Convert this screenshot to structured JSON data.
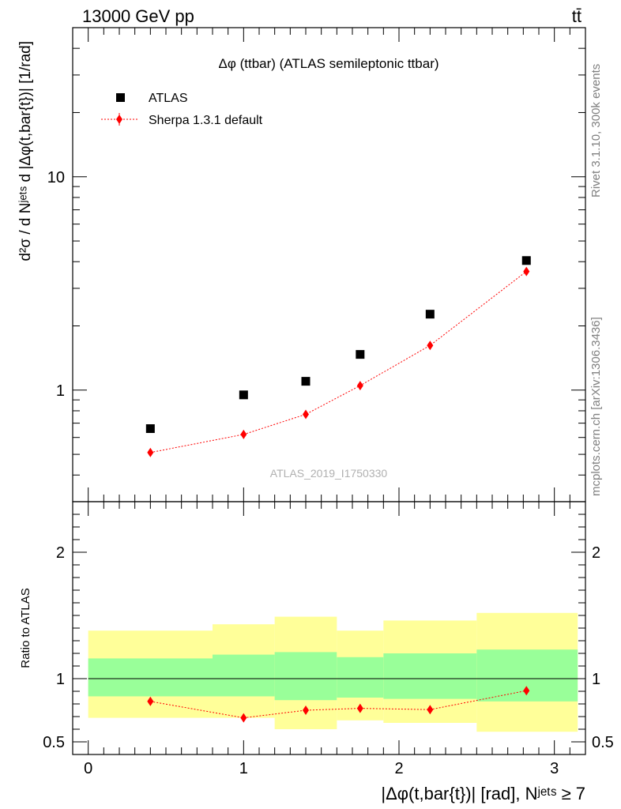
{
  "header": {
    "left": "13000 GeV pp",
    "right": "tt̄"
  },
  "side_labels": {
    "rivet": "Rivet 3.1.10,  300k events",
    "mcplots": "mcplots.cern.ch [arXiv:1306.3436]"
  },
  "chart_data": [
    {
      "type": "scatter",
      "title": "Δφ (ttbar) (ATLAS semileptonic ttbar)",
      "watermark": "ATLAS_2019_I1750330",
      "ylabel": "d²σ / d Nʲᵉᵗˢ d |Δφ(t,bar{t})| [1/rad]",
      "yscale": "log",
      "xlim": [
        -0.1,
        3.2
      ],
      "ylim": [
        0.3,
        50
      ],
      "ytick_labels": [
        "1",
        "10"
      ],
      "legend": {
        "placement": "top-left"
      },
      "series": [
        {
          "name": "ATLAS",
          "marker": "square",
          "color": "#000000",
          "x": [
            0.4,
            1.0,
            1.4,
            1.75,
            2.2,
            2.82
          ],
          "y": [
            0.66,
            0.95,
            1.1,
            1.47,
            2.27,
            4.05
          ]
        },
        {
          "name": "Sherpa 1.3.1 default",
          "marker": "diamond",
          "line": "dotted",
          "color": "#ff0000",
          "x": [
            0.4,
            1.0,
            1.4,
            1.75,
            2.2,
            2.82
          ],
          "y": [
            0.51,
            0.62,
            0.77,
            1.05,
            1.62,
            3.6
          ],
          "yerr": [
            0.015,
            0.025,
            0.03,
            0.04,
            0.05,
            0.08
          ]
        }
      ]
    },
    {
      "type": "scatter",
      "ylabel": "Ratio to ATLAS",
      "xlabel": "|Δφ(t,bar{t})| [rad], Nʲᵉᵗˢ ≥ 7",
      "ylim": [
        0.4,
        2.4
      ],
      "xlim": [
        -0.1,
        3.2
      ],
      "ytick_labels": [
        "0.5",
        "1",
        "2"
      ],
      "xtick_labels": [
        "0",
        "1",
        "2",
        "3"
      ],
      "reference_line": 1,
      "bands": {
        "edges": [
          0.0,
          0.8,
          1.2,
          1.6,
          1.9,
          2.5,
          3.15
        ],
        "outer_lo": [
          0.69,
          0.69,
          0.6,
          0.67,
          0.65,
          0.58
        ],
        "outer_hi": [
          1.38,
          1.43,
          1.49,
          1.38,
          1.46,
          1.52
        ],
        "inner_lo": [
          0.86,
          0.86,
          0.83,
          0.85,
          0.84,
          0.82
        ],
        "inner_hi": [
          1.16,
          1.19,
          1.21,
          1.17,
          1.2,
          1.23
        ],
        "outer_color": "#ffff99",
        "inner_color": "#99ff99"
      },
      "series": [
        {
          "name": "Sherpa 1.3.1 default",
          "marker": "diamond",
          "line": "dotted",
          "color": "#ff0000",
          "x": [
            0.4,
            1.0,
            1.4,
            1.75,
            2.2,
            2.82
          ],
          "y": [
            0.82,
            0.69,
            0.75,
            0.765,
            0.755,
            0.905
          ],
          "yerr": [
            0.025,
            0.025,
            0.025,
            0.025,
            0.012,
            0.012
          ]
        }
      ]
    }
  ]
}
